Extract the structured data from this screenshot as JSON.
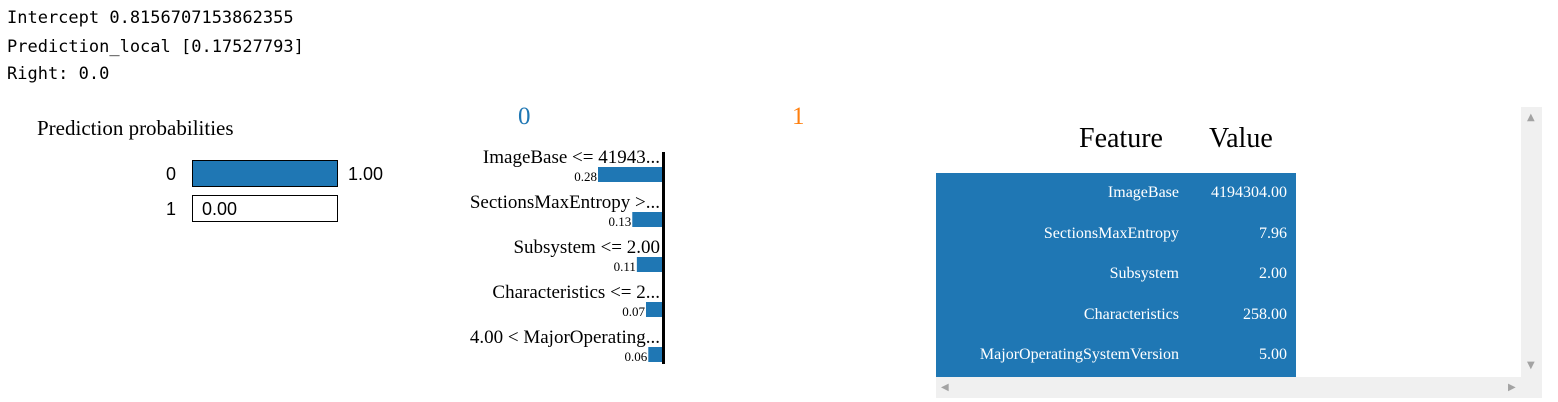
{
  "output": {
    "intercept": "Intercept 0.8156707153862355",
    "prediction_local": "Prediction_local [0.17527793]",
    "right": "Right: 0.0"
  },
  "prediction_probabilities": {
    "title": "Prediction probabilities",
    "rows": [
      {
        "label": "0",
        "value": 1.0,
        "value_text": "1.00"
      },
      {
        "label": "1",
        "value": 0.0,
        "value_text": "0.00"
      }
    ],
    "bar_color": "#1f77b4"
  },
  "explanation": {
    "class_labels": [
      {
        "text": "0",
        "color": "#1f77b4"
      },
      {
        "text": "1",
        "color": "#ff7f0e"
      }
    ],
    "features": [
      {
        "label": "ImageBase <= 41943...",
        "weight": 0.28,
        "weight_text": "0.28"
      },
      {
        "label": "SectionsMaxEntropy >...",
        "weight": 0.13,
        "weight_text": "0.13"
      },
      {
        "label": "Subsystem <= 2.00",
        "weight": 0.11,
        "weight_text": "0.11"
      },
      {
        "label": "Characteristics <= 2...",
        "weight": 0.07,
        "weight_text": "0.07"
      },
      {
        "label": "4.00 < MajorOperating...",
        "weight": 0.06,
        "weight_text": "0.06"
      }
    ],
    "bar_color": "#1f77b4"
  },
  "feature_table": {
    "headers": {
      "feature": "Feature",
      "value": "Value"
    },
    "rows": [
      {
        "feature": "ImageBase",
        "value": "4194304.00"
      },
      {
        "feature": "SectionsMaxEntropy",
        "value": "7.96"
      },
      {
        "feature": "Subsystem",
        "value": "2.00"
      },
      {
        "feature": "Characteristics",
        "value": "258.00"
      },
      {
        "feature": "MajorOperatingSystemVersion",
        "value": "5.00"
      }
    ],
    "fill_color": "#1f77b4"
  },
  "scrollbar_icons": [
    "arrow-up-icon",
    "arrow-down-icon",
    "arrow-left-icon",
    "arrow-right-icon"
  ]
}
